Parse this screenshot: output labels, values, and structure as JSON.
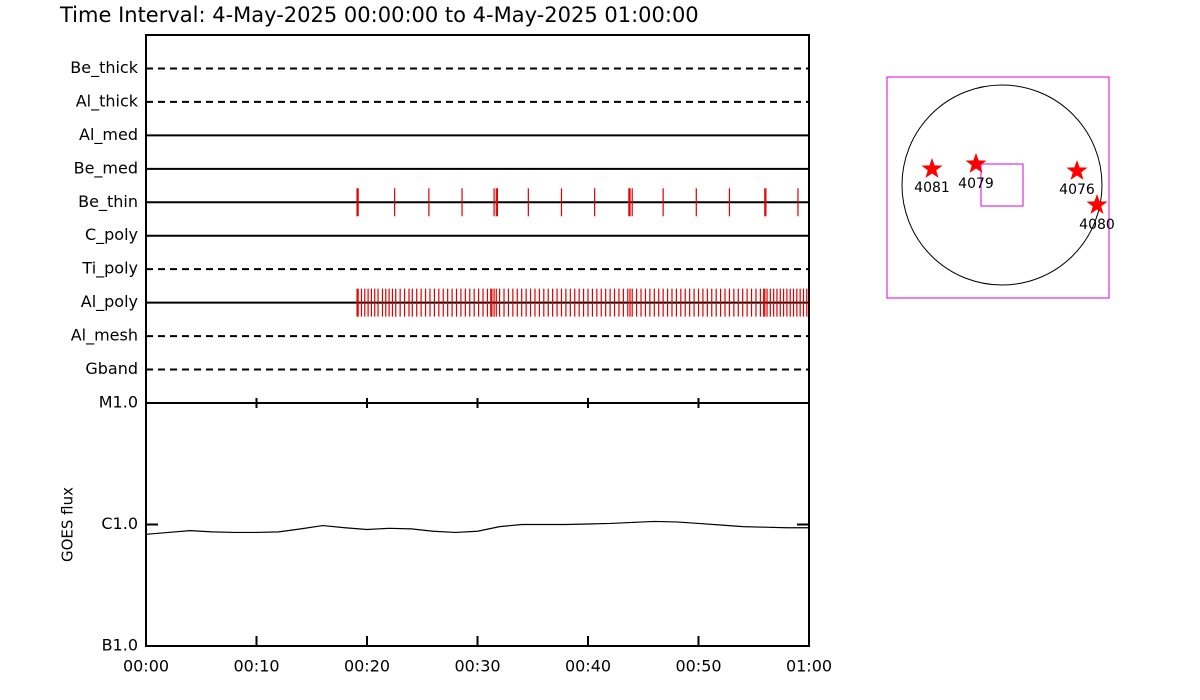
{
  "chart_data": [
    {
      "type": "timeline",
      "title": "Time Interval:  4-May-2025 00:00:00 to  4-May-2025 01:00:00",
      "categories": [
        "Be_thick",
        "Al_thick",
        "Al_med",
        "Be_med",
        "Be_thin",
        "C_poly",
        "Ti_poly",
        "Al_poly",
        "Al_mesh",
        "Gband"
      ],
      "line_styles": [
        "dashed",
        "dashed",
        "solid",
        "solid",
        "solid",
        "solid",
        "dashed",
        "solid",
        "dashed",
        "dashed"
      ],
      "color": "#dd0000",
      "xlim": [
        0,
        60
      ],
      "events": [
        [],
        [],
        [],
        [],
        [
          19.1,
          19.2,
          22.5,
          25.6,
          28.6,
          31.5,
          31.7,
          31.8,
          34.6,
          37.6,
          40.6,
          43.7,
          43.8,
          44.0,
          46.8,
          49.8,
          52.8,
          56.0,
          56.1,
          59.0
        ],
        [],
        [],
        [
          19.1,
          19.2,
          19.5,
          19.8,
          20.1,
          20.4,
          20.7,
          21.0,
          21.4,
          21.7,
          22.0,
          22.3,
          22.6,
          23.0,
          23.4,
          23.8,
          24.1,
          24.5,
          24.9,
          25.3,
          25.7,
          26.1,
          26.5,
          26.9,
          27.3,
          27.7,
          28.1,
          28.5,
          28.9,
          29.3,
          29.7,
          30.1,
          30.5,
          30.9,
          31.2,
          31.3,
          31.5,
          31.7,
          32.0,
          32.4,
          32.8,
          33.2,
          33.6,
          34.0,
          34.4,
          34.8,
          35.2,
          35.6,
          36.0,
          36.4,
          36.8,
          37.2,
          37.6,
          38.0,
          38.4,
          38.8,
          39.2,
          39.6,
          40.0,
          40.4,
          40.8,
          41.2,
          41.6,
          42.0,
          42.4,
          42.8,
          43.2,
          43.6,
          43.8,
          44.0,
          44.4,
          44.8,
          45.2,
          45.6,
          46.0,
          46.4,
          46.8,
          47.2,
          47.6,
          48.0,
          48.4,
          48.8,
          49.2,
          49.6,
          50.0,
          50.4,
          50.8,
          51.2,
          51.6,
          52.0,
          52.4,
          52.8,
          53.2,
          53.6,
          54.0,
          54.4,
          54.8,
          55.2,
          55.6,
          55.9,
          56.0,
          56.2,
          56.5,
          56.8,
          57.1,
          57.4,
          57.7,
          58.0,
          58.3,
          58.6,
          58.9,
          59.2,
          59.5,
          59.8
        ],
        [],
        []
      ]
    },
    {
      "type": "line",
      "y_label": "GOES flux",
      "color": "#000000",
      "log_y": true,
      "x": [
        0,
        2,
        4,
        6,
        8,
        10,
        12,
        14,
        16,
        18,
        20,
        22,
        24,
        26,
        28,
        30,
        32,
        34,
        36,
        38,
        40,
        42,
        44,
        46,
        48,
        50,
        52,
        54,
        56,
        58,
        60
      ],
      "values": [
        8.3e-07,
        8.6e-07,
        8.9e-07,
        8.7e-07,
        8.6e-07,
        8.6e-07,
        8.7e-07,
        9.2e-07,
        9.8e-07,
        9.4e-07,
        9.1e-07,
        9.3e-07,
        9.2e-07,
        8.8e-07,
        8.6e-07,
        8.8e-07,
        9.6e-07,
        1e-06,
        1e-06,
        1e-06,
        1.01e-06,
        1.02e-06,
        1.04e-06,
        1.06e-06,
        1.05e-06,
        1.02e-06,
        9.9e-07,
        9.6e-07,
        9.5e-07,
        9.4e-07,
        9.4e-07
      ],
      "xlim": [
        0,
        60
      ],
      "xticks": [
        {
          "value": 0,
          "label": "00:00"
        },
        {
          "value": 10,
          "label": "00:10"
        },
        {
          "value": 20,
          "label": "00:20"
        },
        {
          "value": 30,
          "label": "00:30"
        },
        {
          "value": 40,
          "label": "00:40"
        },
        {
          "value": 50,
          "label": "00:50"
        },
        {
          "value": 60,
          "label": "01:00"
        }
      ],
      "ylim": [
        1e-07,
        1e-05
      ],
      "yticks": [
        {
          "value": 1e-07,
          "label": "B1.0"
        },
        {
          "value": 1e-06,
          "label": "C1.0"
        },
        {
          "value": 1e-05,
          "label": "M1.0"
        }
      ]
    }
  ],
  "map": {
    "regions": [
      "4081",
      "4079",
      "4076",
      "4080"
    ]
  }
}
